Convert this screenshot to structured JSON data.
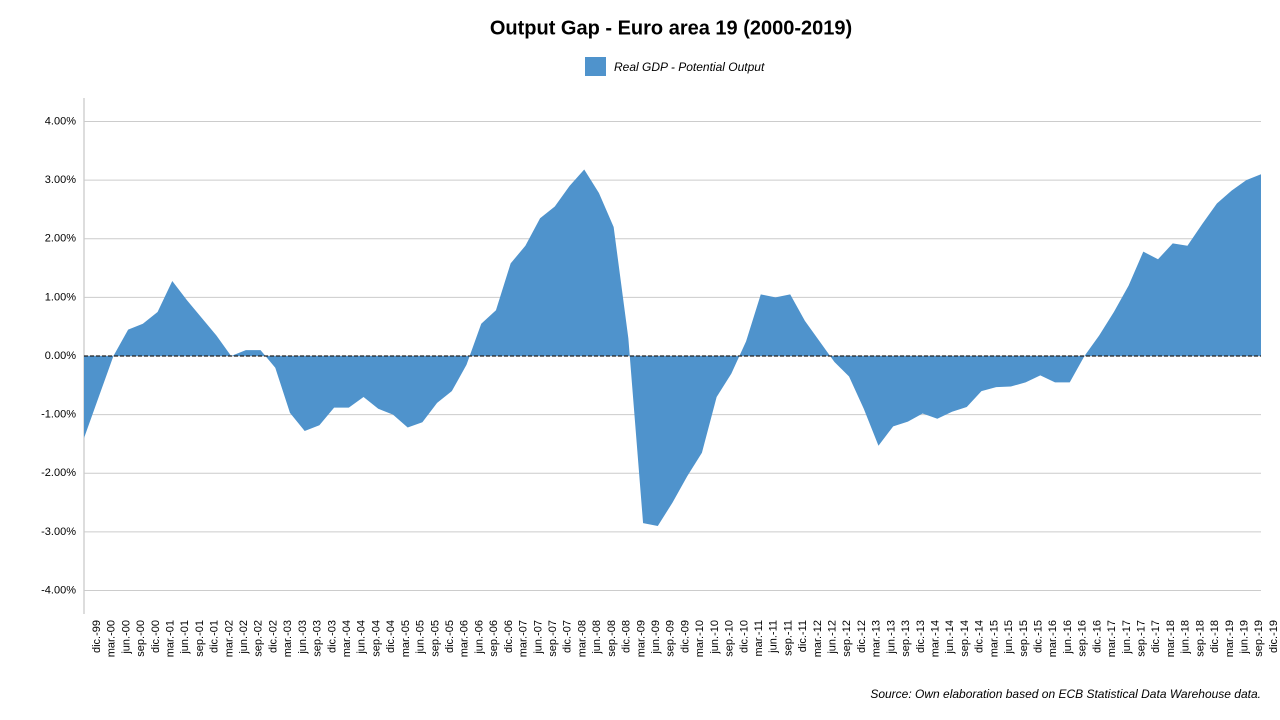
{
  "chart_data": {
    "type": "area",
    "title": "Output Gap - Euro area 19 (2000-2019)",
    "source": "Source: Own elaboration based on ECB Statistical Data Warehouse data.",
    "categories": [
      "dic.-99",
      "mar.-00",
      "jun.-00",
      "sep.-00",
      "dic.-00",
      "mar.-01",
      "jun.-01",
      "sep.-01",
      "dic.-01",
      "mar.-02",
      "jun.-02",
      "sep.-02",
      "dic.-02",
      "mar.-03",
      "jun.-03",
      "sep.-03",
      "dic.-03",
      "mar.-04",
      "jun.-04",
      "sep.-04",
      "dic.-04",
      "mar.-05",
      "jun.-05",
      "sep.-05",
      "dic.-05",
      "mar.-06",
      "jun.-06",
      "sep.-06",
      "dic.-06",
      "mar.-07",
      "jun.-07",
      "sep.-07",
      "dic.-07",
      "mar.-08",
      "jun.-08",
      "sep.-08",
      "dic.-08",
      "mar.-09",
      "jun.-09",
      "sep.-09",
      "dic.-09",
      "mar.-10",
      "jun.-10",
      "sep.-10",
      "dic.-10",
      "mar.-11",
      "jun.-11",
      "sep.-11",
      "dic.-11",
      "mar.-12",
      "jun.-12",
      "sep.-12",
      "dic.-12",
      "mar.-13",
      "jun.-13",
      "sep.-13",
      "dic.-13",
      "mar.-14",
      "jun.-14",
      "sep.-14",
      "dic.-14",
      "mar.-15",
      "jun.-15",
      "sep.-15",
      "dic.-15",
      "mar.-16",
      "jun.-16",
      "sep.-16",
      "dic.-16",
      "mar.-17",
      "jun.-17",
      "sep.-17",
      "dic.-17",
      "mar.-18",
      "jun.-18",
      "sep.-18",
      "dic.-18",
      "mar.-19",
      "jun.-19",
      "sep.-19",
      "dic.-19"
    ],
    "series": [
      {
        "name": "Real GDP - Potential Output",
        "color": "#4f93cc",
        "values": [
          -1.4,
          -0.7,
          0,
          0.45,
          0.55,
          0.75,
          1.28,
          0.95,
          0.65,
          0.35,
          0,
          0.1,
          0.1,
          -0.2,
          -0.97,
          -1.28,
          -1.18,
          -0.88,
          -0.88,
          -0.7,
          -0.9,
          -1.0,
          -1.22,
          -1.13,
          -0.8,
          -0.6,
          -0.15,
          0.55,
          0.78,
          1.58,
          1.88,
          2.35,
          2.55,
          2.9,
          3.18,
          2.78,
          2.2,
          0.3,
          -2.85,
          -2.9,
          -2.5,
          -2.05,
          -1.65,
          -0.7,
          -0.3,
          0.25,
          1.05,
          1.0,
          1.05,
          0.6,
          0.25,
          -0.1,
          -0.35,
          -0.9,
          -1.53,
          -1.2,
          -1.12,
          -0.98,
          -1.07,
          -0.95,
          -0.87,
          -0.6,
          -0.53,
          -0.52,
          -0.45,
          -0.33,
          -0.45,
          -0.45,
          0,
          0.35,
          0.75,
          1.2,
          1.78,
          1.65,
          1.92,
          1.88,
          2.25,
          2.6,
          2.82,
          3.0,
          3.1
        ]
      }
    ],
    "ylim": [
      -4.4,
      4.4
    ],
    "yticks": [
      {
        "value": -4,
        "label": "-4.00%"
      },
      {
        "value": -3,
        "label": "-3.00%"
      },
      {
        "value": -2,
        "label": "-2.00%"
      },
      {
        "value": -1,
        "label": "-1.00%"
      },
      {
        "value": 0,
        "label": "0.00%"
      },
      {
        "value": 1,
        "label": "1.00%"
      },
      {
        "value": 2,
        "label": "2.00%"
      },
      {
        "value": 3,
        "label": "3.00%"
      },
      {
        "value": 4,
        "label": "4.00%"
      }
    ],
    "grid": true
  }
}
